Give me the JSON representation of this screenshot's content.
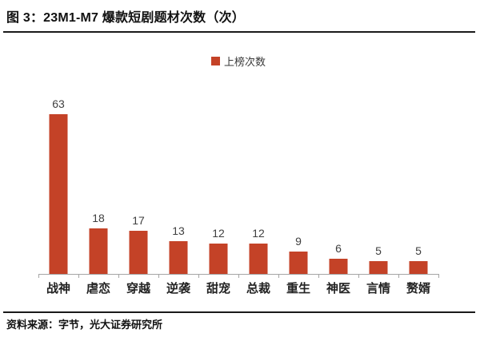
{
  "header": {
    "figure_title": "图 3：23M1-M7 爆款短剧题材次数（次）"
  },
  "legend": {
    "label": "上榜次数",
    "swatch_color": "#C44227"
  },
  "chart_data": {
    "type": "bar",
    "title": "图 3：23M1-M7 爆款短剧题材次数（次）",
    "categories": [
      "战神",
      "虐恋",
      "穿越",
      "逆袭",
      "甜宠",
      "总裁",
      "重生",
      "神医",
      "言情",
      "赘婿"
    ],
    "values": [
      63,
      18,
      17,
      13,
      12,
      12,
      9,
      6,
      5,
      5
    ],
    "series_name": "上榜次数",
    "xlabel": "",
    "ylabel": "",
    "ylim": [
      0,
      70
    ],
    "grid": false,
    "legend_position": "top-center",
    "bar_color": "#C44227",
    "value_label_color": "#3f3f3f",
    "axis_color": "#a6a6a6"
  },
  "footer": {
    "source": "资料来源：字节，光大证券研究所"
  }
}
